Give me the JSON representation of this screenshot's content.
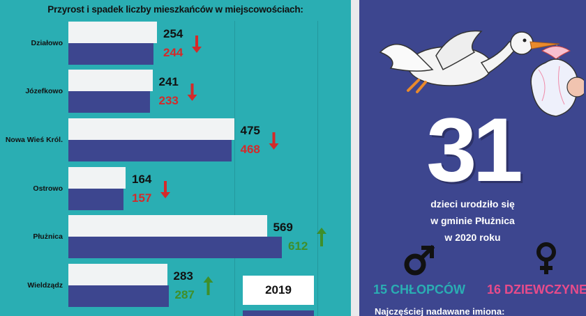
{
  "chart_data": {
    "type": "bar",
    "title": "Przyrost i spadek liczby mieszkańców w miejscowościach:",
    "categories": [
      "Działowo",
      "Józefkowo",
      "Nowa Wieś Król.",
      "Ostrowo",
      "Płużnica",
      "Wieldządz"
    ],
    "series": [
      {
        "name": "2019",
        "values": [
          254,
          241,
          475,
          164,
          569,
          283
        ]
      },
      {
        "name": "",
        "values": [
          244,
          233,
          468,
          157,
          612,
          287
        ]
      }
    ],
    "trend": [
      "down",
      "down",
      "down",
      "down",
      "up",
      "up"
    ],
    "legend_label": "2019",
    "colors": {
      "series1": "#f1f3f4",
      "series2": "#3d468f",
      "down": "#d42a2a",
      "up": "#3f8f2a",
      "background": "#2aaeb3"
    }
  },
  "infographic": {
    "count": "31",
    "line1": "dzieci urodziło się",
    "line2": "w gminie Płużnica",
    "line3": "w 2020 roku",
    "boys_label": "15 CHŁOPCÓW",
    "girls_label": "16 DZIEWCZYNEK",
    "names_heading": "Najczęściej nadawane imiona:",
    "icons": [
      "stork-icon",
      "baby-bundle-icon",
      "male-symbol-icon",
      "female-symbol-icon"
    ],
    "colors": {
      "panel": "#3d468f",
      "boys": "#2aaeb3",
      "girls": "#e84b8a"
    }
  }
}
